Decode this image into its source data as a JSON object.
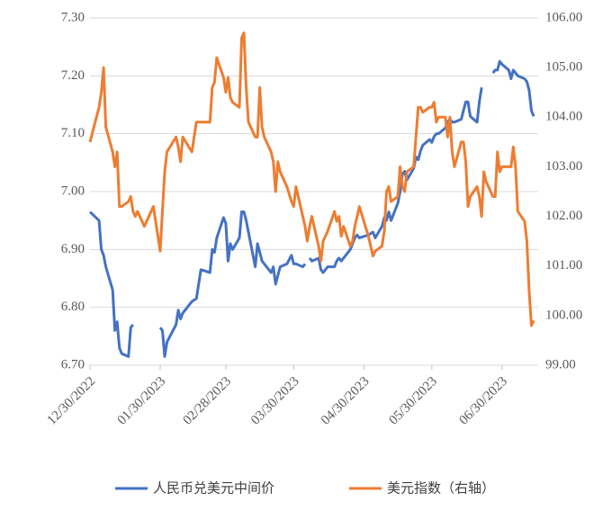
{
  "chart_data": {
    "type": "line",
    "x": [
      "12/30/2022",
      "01/03/2023",
      "01/04/2023",
      "01/05/2023",
      "01/06/2023",
      "01/09/2023",
      "01/10/2023",
      "01/11/2023",
      "01/12/2023",
      "01/13/2023",
      "01/16/2023",
      "01/17/2023",
      "01/18/2023",
      "01/19/2023",
      "01/20/2023",
      "01/23/2023",
      "01/25/2023",
      "01/27/2023",
      "01/30/2023",
      "01/31/2023",
      "02/01/2023",
      "02/02/2023",
      "02/06/2023",
      "02/07/2023",
      "02/08/2023",
      "02/09/2023",
      "02/13/2023",
      "02/15/2023",
      "02/17/2023",
      "02/21/2023",
      "02/22/2023",
      "02/23/2023",
      "02/24/2023",
      "02/27/2023",
      "02/28/2023",
      "03/01/2023",
      "03/02/2023",
      "03/03/2023",
      "03/06/2023",
      "03/07/2023",
      "03/08/2023",
      "03/09/2023",
      "03/10/2023",
      "03/13/2023",
      "03/14/2023",
      "03/15/2023",
      "03/16/2023",
      "03/17/2023",
      "03/20/2023",
      "03/21/2023",
      "03/22/2023",
      "03/23/2023",
      "03/24/2023",
      "03/27/2023",
      "03/29/2023",
      "03/30/2023",
      "03/31/2023",
      "04/03/2023",
      "04/04/2023",
      "04/05/2023",
      "04/06/2023",
      "04/07/2023",
      "04/10/2023",
      "04/11/2023",
      "04/12/2023",
      "04/14/2023",
      "04/17/2023",
      "04/18/2023",
      "04/19/2023",
      "04/20/2023",
      "04/21/2023",
      "04/24/2023",
      "04/25/2023",
      "04/26/2023",
      "04/27/2023",
      "04/28/2023",
      "05/02/2023",
      "05/04/2023",
      "05/05/2023",
      "05/08/2023",
      "05/09/2023",
      "05/10/2023",
      "05/11/2023",
      "05/12/2023",
      "05/15/2023",
      "05/16/2023",
      "05/17/2023",
      "05/18/2023",
      "05/19/2023",
      "05/22/2023",
      "05/23/2023",
      "05/24/2023",
      "05/25/2023",
      "05/26/2023",
      "05/29/2023",
      "05/30/2023",
      "05/31/2023",
      "06/01/2023",
      "06/02/2023",
      "06/05/2023",
      "06/06/2023",
      "06/07/2023",
      "06/08/2023",
      "06/09/2023",
      "06/12/2023",
      "06/13/2023",
      "06/14/2023",
      "06/15/2023",
      "06/16/2023",
      "06/19/2023",
      "06/20/2023",
      "06/21/2023",
      "06/22/2023",
      "06/23/2023",
      "06/26/2023",
      "06/27/2023",
      "06/28/2023",
      "06/29/2023",
      "06/30/2023",
      "07/03/2023",
      "07/04/2023",
      "07/05/2023",
      "07/06/2023",
      "07/07/2023",
      "07/10/2023",
      "07/11/2023",
      "07/12/2023",
      "07/13/2023",
      "07/14/2023"
    ],
    "series": [
      {
        "name": "人民币兑美元中间价",
        "color": "#4472c4",
        "values": [
          6.965,
          6.95,
          6.9,
          6.89,
          6.87,
          6.83,
          6.76,
          6.775,
          6.73,
          6.72,
          6.715,
          6.765,
          6.77,
          null,
          null,
          null,
          null,
          null,
          6.765,
          6.76,
          6.715,
          6.74,
          6.77,
          6.795,
          6.78,
          6.79,
          6.81,
          6.815,
          6.865,
          6.86,
          6.9,
          6.895,
          6.92,
          6.955,
          6.945,
          6.88,
          6.91,
          6.9,
          6.92,
          6.965,
          6.965,
          6.95,
          6.93,
          6.87,
          6.91,
          6.895,
          6.88,
          6.875,
          6.86,
          6.87,
          6.84,
          6.855,
          6.87,
          6.875,
          6.89,
          6.875,
          6.875,
          6.87,
          6.875,
          null,
          6.885,
          6.88,
          6.885,
          6.865,
          6.86,
          6.87,
          6.87,
          6.88,
          6.885,
          6.88,
          6.885,
          6.9,
          6.91,
          6.92,
          6.925,
          6.92,
          6.925,
          6.93,
          6.92,
          6.94,
          6.955,
          6.95,
          6.965,
          6.95,
          6.98,
          7.0,
          7.03,
          7.035,
          7.02,
          7.04,
          7.06,
          7.055,
          7.07,
          7.08,
          7.09,
          7.085,
          7.095,
          7.1,
          7.1,
          7.11,
          7.12,
          7.125,
          7.12,
          7.12,
          7.125,
          7.14,
          7.155,
          7.155,
          7.13,
          7.12,
          7.155,
          7.18,
          null,
          null,
          7.205,
          7.21,
          7.21,
          7.225,
          7.22,
          7.21,
          7.195,
          7.21,
          7.205,
          7.2,
          7.195,
          7.19,
          7.175,
          7.14,
          7.13
        ]
      },
      {
        "name": "美元指数（右轴）",
        "color": "#ed7d31",
        "axis": "y2",
        "values": [
          103.5,
          104.2,
          104.5,
          105.0,
          103.8,
          103.3,
          103.0,
          103.3,
          102.2,
          102.2,
          102.3,
          102.4,
          102.1,
          102.0,
          102.1,
          101.8,
          102.0,
          102.2,
          101.3,
          102.1,
          102.9,
          103.3,
          103.6,
          103.4,
          103.1,
          103.6,
          103.3,
          103.9,
          103.9,
          103.9,
          104.6,
          104.7,
          105.2,
          104.8,
          104.5,
          104.8,
          104.4,
          104.3,
          104.2,
          105.6,
          105.7,
          104.6,
          103.9,
          103.6,
          103.6,
          104.6,
          103.8,
          103.6,
          103.3,
          103.1,
          102.5,
          103.1,
          102.9,
          102.6,
          102.3,
          102.2,
          102.6,
          102.0,
          101.8,
          101.5,
          101.8,
          102.0,
          101.4,
          101.1,
          101.5,
          101.7,
          102.1,
          101.9,
          102.0,
          101.6,
          101.8,
          101.4,
          101.5,
          101.8,
          102.0,
          102.2,
          101.6,
          101.2,
          101.3,
          101.4,
          101.7,
          102.5,
          102.6,
          102.3,
          102.4,
          103.0,
          102.6,
          102.5,
          102.9,
          103.0,
          103.6,
          104.2,
          104.2,
          104.1,
          104.2,
          104.2,
          104.3,
          103.9,
          104.0,
          104.0,
          103.6,
          104.0,
          103.3,
          103.0,
          103.5,
          103.5,
          103.1,
          102.2,
          102.4,
          102.6,
          102.4,
          102.0,
          102.9,
          102.7,
          102.4,
          102.4,
          103.3,
          102.9,
          103.0,
          103.0,
          103.0,
          103.4,
          103.0,
          102.1,
          101.9,
          101.5,
          100.5,
          99.8,
          99.9
        ]
      }
    ],
    "xlim": [
      "12/30/2022",
      "07/16/2023"
    ],
    "xticks": [
      "12/30/2022",
      "01/30/2023",
      "02/28/2023",
      "03/30/2023",
      "04/30/2023",
      "05/30/2023",
      "06/30/2023"
    ],
    "ylim": [
      6.7,
      7.3
    ],
    "yticks": [
      {
        "value": 6.7,
        "label": "6.70"
      },
      {
        "value": 6.8,
        "label": "6.80"
      },
      {
        "value": 6.9,
        "label": "6.90"
      },
      {
        "value": 7.0,
        "label": "7.00"
      },
      {
        "value": 7.1,
        "label": "7.10"
      },
      {
        "value": 7.2,
        "label": "7.20"
      },
      {
        "value": 7.3,
        "label": "7.30"
      }
    ],
    "y2lim": [
      99,
      106
    ],
    "y2ticks": [
      {
        "value": 99,
        "label": "99.00"
      },
      {
        "value": 100,
        "label": "100.00"
      },
      {
        "value": 101,
        "label": "101.00"
      },
      {
        "value": 102,
        "label": "102.00"
      },
      {
        "value": 103,
        "label": "103.00"
      },
      {
        "value": 104,
        "label": "104.00"
      },
      {
        "value": 105,
        "label": "105.00"
      },
      {
        "value": 106,
        "label": "106.00"
      }
    ],
    "grid": true,
    "legend": "bottom"
  }
}
